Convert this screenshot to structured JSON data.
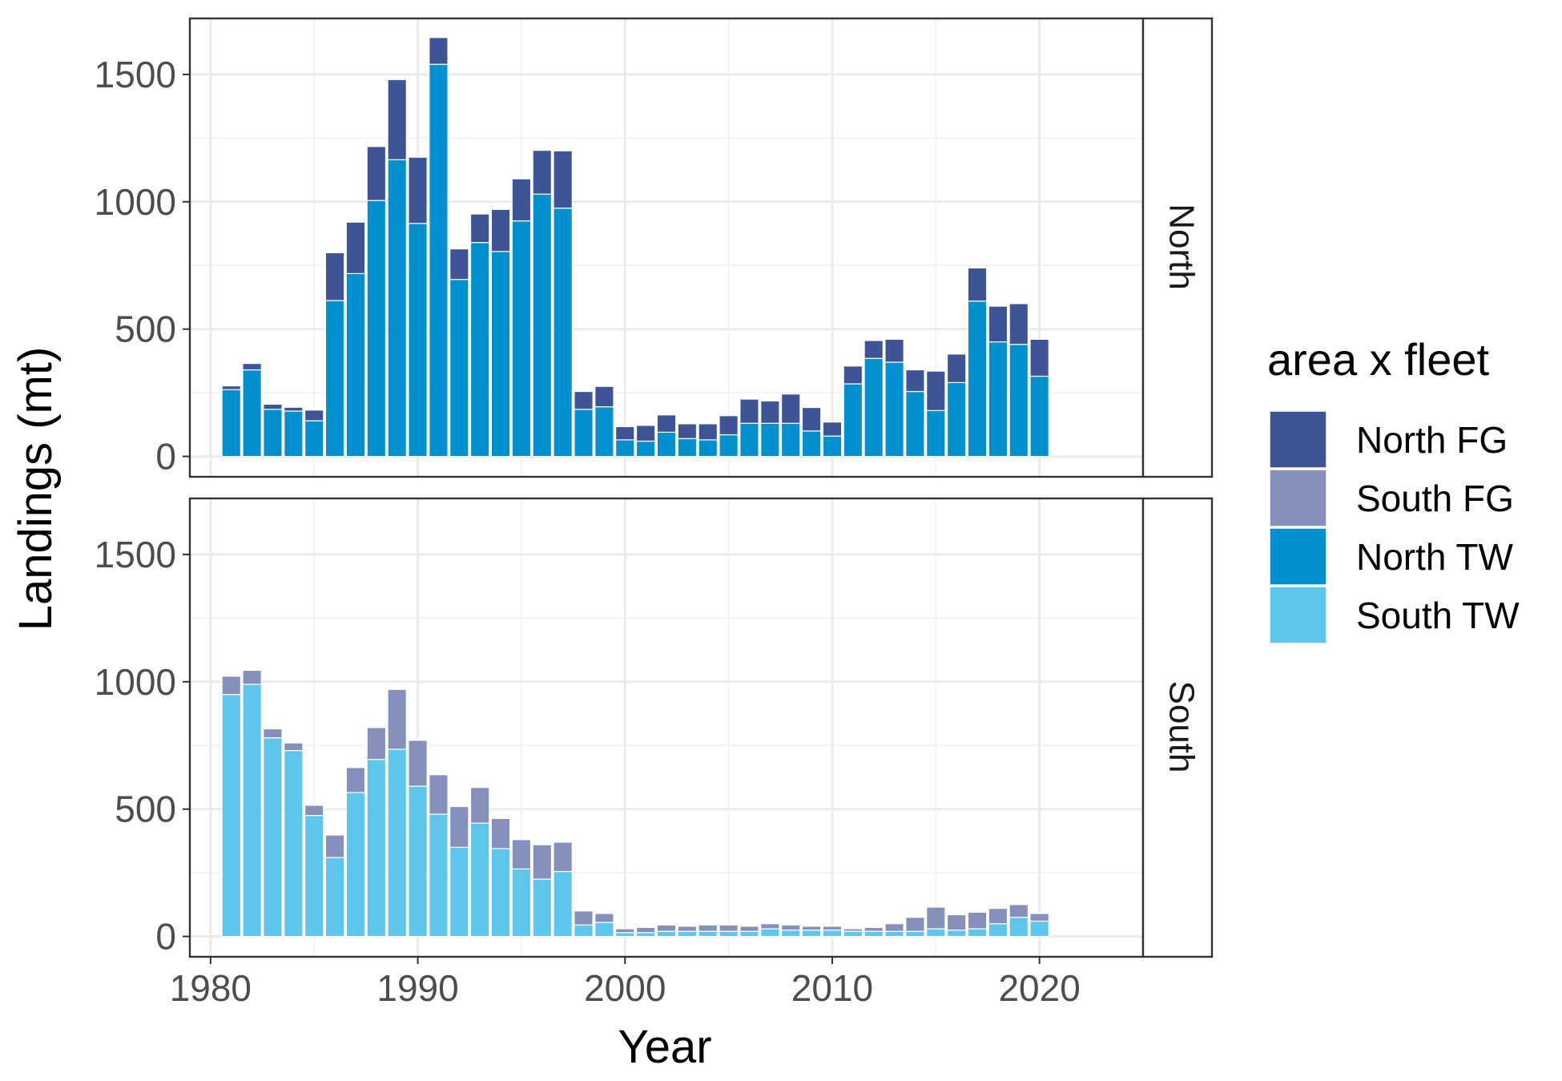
{
  "chart_data": {
    "type": "bar",
    "stacked": true,
    "facets": [
      "North",
      "South"
    ],
    "xlabel": "Year",
    "ylabel": "Landings (mt)",
    "xlim": [
      1979,
      2025
    ],
    "ylim": [
      -80,
      1720
    ],
    "x_ticks": [
      "1980",
      "1990",
      "2000",
      "2010",
      "2020"
    ],
    "y_ticks": [
      "0",
      "500",
      "1000",
      "1500"
    ],
    "grid": true,
    "legend": {
      "title": "area x fleet",
      "position": "right",
      "entries": [
        "North FG",
        "South FG",
        "North TW",
        "South TW"
      ]
    },
    "colors": {
      "North FG": "#3f5497",
      "South FG": "#8590bd",
      "North TW": "#0090cf",
      "South TW": "#5ec6ec"
    },
    "years": [
      1981,
      1982,
      1983,
      1984,
      1985,
      1986,
      1987,
      1988,
      1989,
      1990,
      1991,
      1992,
      1993,
      1994,
      1995,
      1996,
      1997,
      1998,
      1999,
      2000,
      2001,
      2002,
      2003,
      2004,
      2005,
      2006,
      2007,
      2008,
      2009,
      2010,
      2011,
      2012,
      2013,
      2014,
      2015,
      2016,
      2017,
      2018,
      2019,
      2020
    ],
    "panels": [
      {
        "facet": "North",
        "series": [
          {
            "name": "North TW",
            "values": [
              262,
              340,
              185,
              178,
              140,
              612,
              718,
              1005,
              1165,
              915,
              1540,
              695,
              840,
              805,
              925,
              1030,
              975,
              185,
              195,
              65,
              60,
              95,
              70,
              65,
              85,
              130,
              130,
              130,
              100,
              80,
              285,
              385,
              370,
              255,
              180,
              290,
              610,
              450,
              440,
              315
            ]
          },
          {
            "name": "North FG",
            "values": [
              15,
              25,
              20,
              15,
              42,
              188,
              202,
              212,
              315,
              260,
              105,
              120,
              112,
              165,
              165,
              172,
              225,
              70,
              80,
              52,
              62,
              68,
              58,
              63,
              75,
              95,
              88,
              115,
              92,
              55,
              70,
              70,
              90,
              85,
              155,
              112,
              130,
              140,
              160,
              145
            ]
          }
        ]
      },
      {
        "facet": "South",
        "series": [
          {
            "name": "South TW",
            "values": [
              950,
              990,
              780,
              730,
              475,
              310,
              565,
              695,
              735,
              590,
              480,
              350,
              445,
              345,
              265,
              225,
              255,
              45,
              55,
              15,
              15,
              20,
              20,
              20,
              20,
              20,
              30,
              25,
              25,
              25,
              20,
              20,
              20,
              20,
              30,
              25,
              30,
              50,
              75,
              60
            ]
          },
          {
            "name": "South FG",
            "values": [
              72,
              55,
              35,
              30,
              40,
              88,
              98,
              125,
              235,
              180,
              155,
              160,
              140,
              118,
              115,
              135,
              115,
              55,
              35,
              15,
              20,
              25,
              20,
              25,
              25,
              20,
              20,
              20,
              15,
              15,
              10,
              15,
              30,
              55,
              85,
              60,
              65,
              60,
              50,
              30
            ]
          }
        ]
      }
    ]
  }
}
